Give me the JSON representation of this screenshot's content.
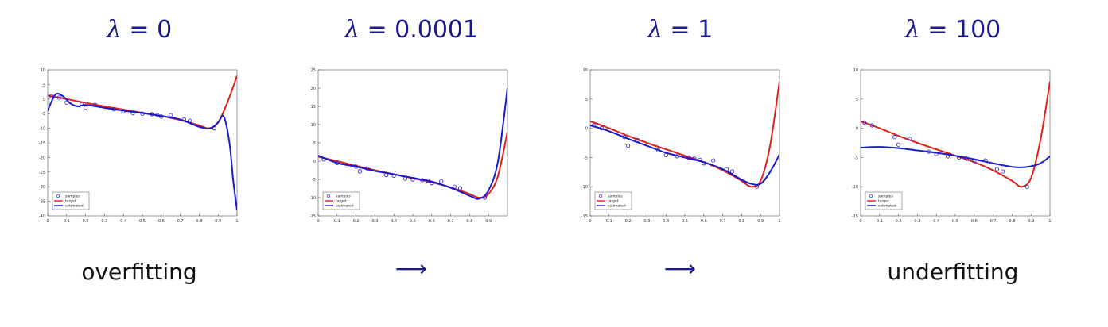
{
  "panels": [
    {
      "title_symbol": "λ",
      "title_value": "= 0",
      "caption": "overfitting",
      "caption_kind": "text"
    },
    {
      "title_symbol": "λ",
      "title_value": "= 0.0001",
      "caption": "⟶",
      "caption_kind": "arrow"
    },
    {
      "title_symbol": "λ",
      "title_value": "= 1",
      "caption": "⟶",
      "caption_kind": "arrow"
    },
    {
      "title_symbol": "λ",
      "title_value": "= 100",
      "caption": "underfitting",
      "caption_kind": "text"
    }
  ],
  "colors": {
    "title": "#1a1a8c",
    "target": "#e0201c",
    "estimated": "#1a1ad0",
    "samples": "#1a1ad0"
  },
  "chart_data": [
    {
      "type": "line",
      "xlim": [
        0,
        1
      ],
      "ylim": [
        -40,
        10
      ],
      "xticks": [
        0,
        0.1,
        0.2,
        0.3,
        0.4,
        0.5,
        0.6,
        0.7,
        0.8,
        0.9,
        1
      ],
      "yticks": [
        10,
        5,
        0,
        -5,
        -10,
        -15,
        -20,
        -25,
        -30,
        -35,
        -40
      ],
      "legend": [
        "samples",
        "target",
        "estimated"
      ],
      "legend_position": "bottom-left",
      "samples": {
        "x": [
          0.02,
          0.06,
          0.1,
          0.18,
          0.2,
          0.25,
          0.35,
          0.4,
          0.45,
          0.5,
          0.55,
          0.58,
          0.6,
          0.65,
          0.72,
          0.75,
          0.88
        ],
        "y": [
          1,
          0.5,
          -1.2,
          -1.8,
          -3,
          -2,
          -3.5,
          -4.2,
          -4.8,
          -5,
          -5.2,
          -5.5,
          -6,
          -5.5,
          -7,
          -7.4,
          -10
        ]
      },
      "target": {
        "x": [
          0,
          0.1,
          0.2,
          0.3,
          0.4,
          0.5,
          0.6,
          0.7,
          0.8,
          0.85,
          0.9,
          0.95,
          1
        ],
        "y": [
          1.2,
          0,
          -1.3,
          -2.5,
          -3.6,
          -4.7,
          -5.8,
          -7.2,
          -9,
          -10,
          -8,
          -1,
          8
        ]
      },
      "estimated": {
        "x": [
          0,
          0.04,
          0.08,
          0.12,
          0.16,
          0.2,
          0.3,
          0.4,
          0.5,
          0.6,
          0.7,
          0.8,
          0.86,
          0.9,
          0.93,
          0.96,
          0.98,
          1
        ],
        "y": [
          -4,
          1.5,
          1,
          -1.5,
          -2.5,
          -2,
          -3,
          -4,
          -4.8,
          -5.8,
          -7,
          -9.5,
          -10,
          -8,
          -6,
          -15,
          -28,
          -38
        ]
      }
    },
    {
      "type": "line",
      "xlim": [
        0,
        1
      ],
      "ylim": [
        -15,
        25
      ],
      "xticks": [
        0,
        0.1,
        0.2,
        0.3,
        0.4,
        0.5,
        0.6,
        0.7,
        0.8,
        0.9
      ],
      "yticks": [
        25,
        20,
        15,
        10,
        5,
        0,
        -5,
        -10,
        -15
      ],
      "legend": [
        "samples",
        "target",
        "estimated"
      ],
      "legend_position": "bottom-left",
      "samples": {
        "x": [
          0.03,
          0.1,
          0.2,
          0.22,
          0.26,
          0.36,
          0.4,
          0.46,
          0.5,
          0.55,
          0.58,
          0.6,
          0.65,
          0.72,
          0.75,
          0.88
        ],
        "y": [
          0.5,
          -0.5,
          -1.5,
          -2.8,
          -2,
          -3.8,
          -4,
          -4.8,
          -5,
          -5.2,
          -5.4,
          -6,
          -5.5,
          -7,
          -7.4,
          -10
        ]
      },
      "target": {
        "x": [
          0,
          0.1,
          0.2,
          0.3,
          0.4,
          0.5,
          0.6,
          0.7,
          0.8,
          0.85,
          0.9,
          0.95,
          1
        ],
        "y": [
          1.2,
          0,
          -1.3,
          -2.5,
          -3.6,
          -4.7,
          -5.8,
          -7.2,
          -9,
          -10,
          -9,
          -4,
          8
        ]
      },
      "estimated": {
        "x": [
          0,
          0.1,
          0.2,
          0.3,
          0.4,
          0.5,
          0.6,
          0.7,
          0.8,
          0.85,
          0.9,
          0.95,
          1
        ],
        "y": [
          1.5,
          -0.5,
          -1.5,
          -2.7,
          -3.6,
          -4.6,
          -5.6,
          -7.3,
          -9.5,
          -10.3,
          -8,
          0,
          20
        ]
      }
    },
    {
      "type": "line",
      "xlim": [
        0,
        1
      ],
      "ylim": [
        -15,
        10
      ],
      "xticks": [
        0,
        0.1,
        0.2,
        0.3,
        0.4,
        0.5,
        0.6,
        0.7,
        0.8,
        0.9,
        1
      ],
      "yticks": [
        10,
        5,
        0,
        -5,
        -10,
        -15
      ],
      "legend": [
        "samples",
        "target",
        "estimated"
      ],
      "legend_position": "bottom-left",
      "samples": {
        "x": [
          0.02,
          0.06,
          0.18,
          0.2,
          0.25,
          0.36,
          0.4,
          0.46,
          0.52,
          0.55,
          0.58,
          0.6,
          0.65,
          0.72,
          0.75,
          0.88
        ],
        "y": [
          0.5,
          0,
          -1.5,
          -3,
          -2,
          -3.8,
          -4.6,
          -4.8,
          -5,
          -5.2,
          -5.4,
          -6,
          -5.5,
          -7,
          -7.4,
          -10
        ]
      },
      "target": {
        "x": [
          0,
          0.1,
          0.2,
          0.3,
          0.4,
          0.5,
          0.6,
          0.7,
          0.8,
          0.85,
          0.9,
          0.95,
          1
        ],
        "y": [
          1.2,
          0,
          -1.3,
          -2.5,
          -3.6,
          -4.7,
          -5.8,
          -7.2,
          -9,
          -10,
          -9,
          -3,
          8
        ]
      },
      "estimated": {
        "x": [
          0,
          0.1,
          0.2,
          0.3,
          0.4,
          0.5,
          0.6,
          0.7,
          0.8,
          0.85,
          0.9,
          0.95,
          1
        ],
        "y": [
          0.5,
          -0.5,
          -1.8,
          -3,
          -4.2,
          -5,
          -5.8,
          -7,
          -8.8,
          -9.5,
          -9.5,
          -7.5,
          -4.5
        ]
      }
    },
    {
      "type": "line",
      "xlim": [
        0,
        1
      ],
      "ylim": [
        -15,
        10
      ],
      "xticks": [
        0,
        0.1,
        0.2,
        0.3,
        0.4,
        0.5,
        0.6,
        0.7,
        0.8,
        0.9,
        1
      ],
      "yticks": [
        10,
        5,
        0,
        -5,
        -10,
        -15
      ],
      "legend": [
        "samples",
        "target",
        "estimated"
      ],
      "legend_position": "bottom-left",
      "samples": {
        "x": [
          0.02,
          0.06,
          0.18,
          0.2,
          0.26,
          0.36,
          0.4,
          0.46,
          0.52,
          0.56,
          0.6,
          0.66,
          0.72,
          0.75,
          0.88
        ],
        "y": [
          1,
          0.5,
          -1.5,
          -2.8,
          -1.8,
          -4,
          -4.4,
          -4.8,
          -5,
          -5.2,
          -5.6,
          -5.5,
          -7,
          -7.4,
          -10
        ]
      },
      "target": {
        "x": [
          0,
          0.1,
          0.2,
          0.3,
          0.4,
          0.5,
          0.6,
          0.7,
          0.8,
          0.85,
          0.9,
          0.95,
          1
        ],
        "y": [
          1.2,
          0,
          -1.3,
          -2.5,
          -3.6,
          -4.7,
          -5.8,
          -7.2,
          -9,
          -10,
          -8.5,
          -2,
          8
        ]
      },
      "estimated": {
        "x": [
          0,
          0.1,
          0.2,
          0.3,
          0.4,
          0.5,
          0.6,
          0.7,
          0.8,
          0.85,
          0.9,
          0.95,
          1
        ],
        "y": [
          -3.3,
          -3.2,
          -3.4,
          -3.8,
          -4.2,
          -4.7,
          -5.3,
          -6,
          -6.6,
          -6.7,
          -6.5,
          -6,
          -4.8
        ]
      }
    }
  ]
}
